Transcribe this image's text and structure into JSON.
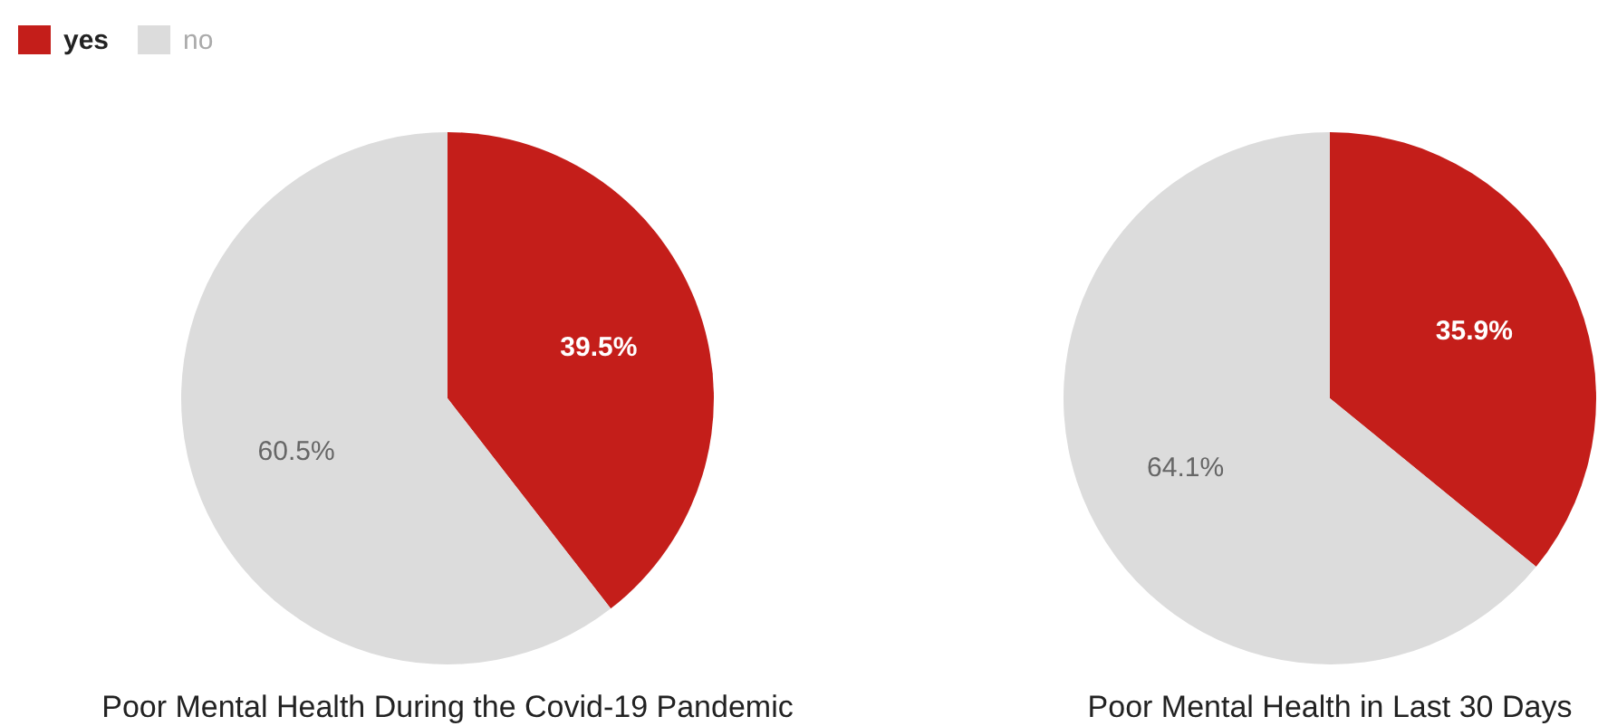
{
  "chart_data": [
    {
      "type": "pie",
      "title": "Poor Mental Health During the Covid-19 Pandemic",
      "categories": [
        "yes",
        "no"
      ],
      "values": [
        39.5,
        60.5
      ],
      "colors": [
        "#c41e1a",
        "#dcdcdc"
      ],
      "value_labels": [
        "39.5%",
        "60.5%"
      ],
      "legend": "top left"
    },
    {
      "type": "pie",
      "title": "Poor Mental Health in Last 30 Days",
      "categories": [
        null,
        null
      ],
      "values": [
        35.9,
        64.1
      ],
      "colors": [
        "#c41e1a",
        "#dcdcdc"
      ],
      "value_labels": [
        "35.9%",
        "64.1%"
      ]
    }
  ]
}
